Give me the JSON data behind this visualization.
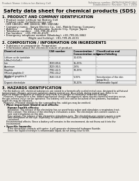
{
  "bg_color": "#f0ede8",
  "header_left": "Product Name: Lithium Ion Battery Cell",
  "header_right_line1": "Substance number: EM7643SU16HY-10LF",
  "header_right_line2": "Establishment / Revision: Dec.7.2010",
  "title": "Safety data sheet for chemical products (SDS)",
  "section1_title": "1. PRODUCT AND COMPANY IDENTIFICATION",
  "section1_lines": [
    "  • Product name: Lithium Ion Battery Cell",
    "  • Product code: Cylindrical-type cell",
    "    (IHR 18650U, IMR 18650U, IMR 18650A)",
    "  • Company name:   Sanyo Electric Co., Ltd., Mobile Energy Company",
    "  • Address:         2001  Kamikosaka, Sumoto City, Hyogo, Japan",
    "  • Telephone number:   +81-799-26-4111",
    "  • Fax number:   +81-799-26-4129",
    "  • Emergency telephone number (Weekday): +81-799-26-3862",
    "                              (Night and holiday): +81-799-26-4131"
  ],
  "section2_title": "2. COMPOSITION / INFORMATION ON INGREDIENTS",
  "section2_intro": "  • Substance or preparation: Preparation",
  "section2_sub": "  • Information about the chemical nature of product:",
  "col_headers": [
    "Chemical name",
    "CAS number",
    "Concentration /\nConcentration range",
    "Classification and\nhazard labeling"
  ],
  "table_rows": [
    [
      "Lithium oxide-tantalate\n(LiMn₂O⁴/LiCoO₂)",
      "-",
      "30-60%",
      "-"
    ],
    [
      "Iron",
      "7439-89-6",
      "15-25%",
      "-"
    ],
    [
      "Aluminum",
      "7429-90-5",
      "2-6%",
      "-"
    ],
    [
      "Graphite\n(Mixed graphite-I)\n(Artificial graphite-I)",
      "7782-42-5\n7782-44-2",
      "10-25%",
      "-"
    ],
    [
      "Copper",
      "7440-50-8",
      "5-15%",
      "Sensitization of the skin\ngroup No.2"
    ],
    [
      "Organic electrolyte",
      "-",
      "10-20%",
      "Inflammable liquid"
    ]
  ],
  "section3_title": "3. HAZARDS IDENTIFICATION",
  "section3_lines": [
    "  For the battery cell, chemical substances are stored in a hermetically sealed metal case, designed to withstand",
    "temperature changes, pressure-variations during normal use. As a result, during normal use, there is no",
    "physical danger of ignition or explosion and there is no danger of hazardous materials leakage.",
    "  However, if exposed to a fire, added mechanical shocks, decomposed, when electro-chemical reactions occur,",
    "the gas release valve can be operated. The battery cell case will be breached of fire-patterns, hazardous",
    "materials may be released.",
    "  Moreover, if heated strongly by the surrounding fire, solid gas may be emitted."
  ],
  "bullet1_title": "  • Most important hazard and effects:",
  "human_health_title": "      Human health effects:",
  "health_lines": [
    "        Inhalation: The release of the electrolyte has an anesthesia action and stimulates a respiratory tract.",
    "        Skin contact: The release of the electrolyte stimulates a skin. The electrolyte skin contact causes a",
    "        sore and stimulation on the skin.",
    "        Eye contact: The release of the electrolyte stimulates eyes. The electrolyte eye contact causes a sore",
    "        and stimulation on the eye. Especially, a substance that causes a strong inflammation of the eye is",
    "        contained.",
    "      Environmental effects: Since a battery cell remains in the environment, do not throw out it into the",
    "      environment."
  ],
  "bullet2_title": "  • Specific hazards:",
  "specific_lines": [
    "        If the electrolyte contacts with water, it will generate detrimental hydrogen fluoride.",
    "        Since the liquid electrolyte is inflammable liquid, do not bring close to fire."
  ]
}
